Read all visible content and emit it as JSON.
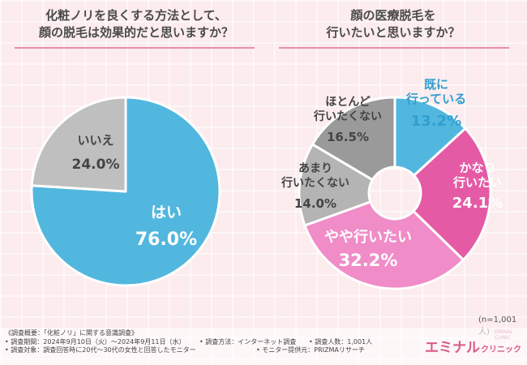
{
  "page": {
    "left_title": [
      "化粧ノリを良くする方法として、",
      "顔の脱毛は効果的だと思いますか？"
    ],
    "right_title": [
      "顔の医療脱毛を",
      "行いたいと思いますか？"
    ],
    "n_note": "(n=1,001人)",
    "footnotes": {
      "overview": "《調査概要：「化粧ノリ」に関する意識調査》",
      "period": "• 調査期間：2024年9月10日（火）〜2024年9月11日（水）",
      "method": "• 調査方法：インターネット調査",
      "people": "• 調査人数：1,001人",
      "target": "• 調査対象：調査回答時に20代〜30代の女性と回答したモニター",
      "provider": "• モニター提供元：PRIZMAリサーチ"
    },
    "logo": {
      "main": "エミナル",
      "sub": "クリニック",
      "ghost": "EMINAL CLINIC"
    },
    "colors": {
      "blue": "#52b7de",
      "gray_light": "#bfbfbf",
      "gray_dark": "#9a9a9a",
      "gray_mid": "#b4b4b4",
      "pink_light": "#f08cc8",
      "pink": "#e55aa5",
      "accent": "#d85a8a",
      "text_dark": "#444444"
    }
  },
  "chart_data": [
    {
      "type": "pie",
      "title": "化粧ノリを良くする方法として、顔の脱毛は効果的だと思いますか？",
      "unit": "%",
      "slices": [
        {
          "label": [
            "はい"
          ],
          "value": 76.0,
          "value_label": "76.0%",
          "color": "#52b7de"
        },
        {
          "label": [
            "いいえ"
          ],
          "value": 24.0,
          "value_label": "24.0%",
          "color": "#bfbfbf"
        }
      ]
    },
    {
      "type": "pie",
      "variant": "donut",
      "title": "顔の医療脱毛を行いたいと思いますか？",
      "unit": "%",
      "slices": [
        {
          "label": [
            "既に",
            "行っている"
          ],
          "value": 13.2,
          "value_label": "13.2%",
          "color": "#52b7de"
        },
        {
          "label": [
            "かなり",
            "行いたい"
          ],
          "value": 24.1,
          "value_label": "24.1%",
          "color": "#e55aa5"
        },
        {
          "label": [
            "やや行いたい"
          ],
          "value": 32.2,
          "value_label": "32.2%",
          "color": "#f08cc8"
        },
        {
          "label": [
            "あまり",
            "行いたくない"
          ],
          "value": 14.0,
          "value_label": "14.0%",
          "color": "#b4b4b4"
        },
        {
          "label": [
            "ほとんど",
            "行いたくない"
          ],
          "value": 16.5,
          "value_label": "16.5%",
          "color": "#9a9a9a"
        }
      ]
    }
  ]
}
